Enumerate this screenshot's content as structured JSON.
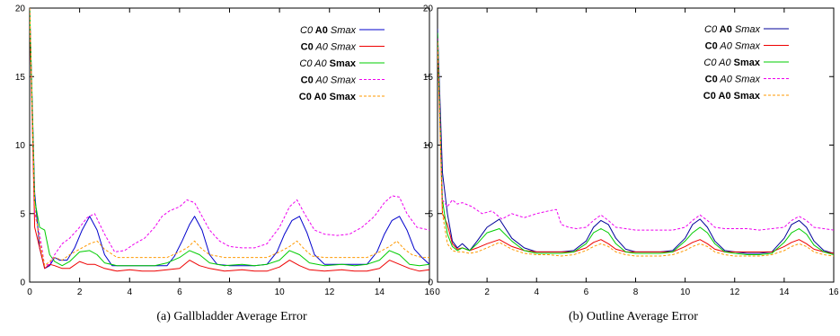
{
  "captions": {
    "left": "(a)  Gallbladder Average Error",
    "right": "(b)  Outline Average Error"
  },
  "legend_entries": [
    {
      "parts": [
        {
          "t": "C",
          "s": "i"
        },
        {
          "t": "0",
          "s": "i"
        },
        {
          "t": " A",
          "s": "b"
        },
        {
          "t": "0",
          "s": "b"
        },
        {
          "t": " S",
          "s": "i"
        },
        {
          "t": "max",
          "s": "i"
        }
      ]
    },
    {
      "parts": [
        {
          "t": "C",
          "s": "b"
        },
        {
          "t": "0",
          "s": "b"
        },
        {
          "t": " A",
          "s": "i"
        },
        {
          "t": "0",
          "s": "i"
        },
        {
          "t": " S",
          "s": "i"
        },
        {
          "t": "max",
          "s": "i"
        }
      ]
    },
    {
      "parts": [
        {
          "t": "C",
          "s": "i"
        },
        {
          "t": "0",
          "s": "i"
        },
        {
          "t": " A",
          "s": "i"
        },
        {
          "t": "0",
          "s": "i"
        },
        {
          "t": " S",
          "s": "b"
        },
        {
          "t": "max",
          "s": "b"
        }
      ]
    },
    {
      "parts": [
        {
          "t": "C",
          "s": "b"
        },
        {
          "t": "0",
          "s": "b"
        },
        {
          "t": " A",
          "s": "i"
        },
        {
          "t": "0",
          "s": "i"
        },
        {
          "t": " S",
          "s": "i"
        },
        {
          "t": "max",
          "s": "i"
        }
      ]
    },
    {
      "parts": [
        {
          "t": "C",
          "s": "b"
        },
        {
          "t": "0",
          "s": "b"
        },
        {
          "t": " A",
          "s": "b"
        },
        {
          "t": "0",
          "s": "b"
        },
        {
          "t": " S",
          "s": "b"
        },
        {
          "t": "max",
          "s": "b"
        }
      ]
    }
  ],
  "chart_data": [
    {
      "type": "line",
      "title": "",
      "xlim": [
        0,
        16
      ],
      "ylim": [
        0,
        20
      ],
      "x_ticks": [
        0,
        2,
        4,
        6,
        8,
        10,
        12,
        14,
        16
      ],
      "y_ticks": [
        0,
        5,
        10,
        15,
        20
      ],
      "grid": false,
      "legend_position": "top-right",
      "series": [
        {
          "color": "#0000cc",
          "dash": "solid",
          "x": [
            0,
            0.2,
            0.4,
            0.6,
            0.8,
            1.0,
            1.2,
            1.5,
            1.8,
            2.1,
            2.4,
            2.7,
            3.0,
            3.3,
            3.6,
            4.0,
            4.5,
            5.0,
            5.5,
            5.8,
            6.1,
            6.4,
            6.6,
            6.9,
            7.2,
            7.5,
            8.0,
            8.5,
            9.0,
            9.5,
            9.9,
            10.2,
            10.5,
            10.8,
            11.1,
            11.4,
            11.8,
            12.5,
            13.0,
            13.5,
            13.9,
            14.2,
            14.5,
            14.8,
            15.1,
            15.4,
            15.7,
            16.0
          ],
          "y": [
            20,
            6.5,
            2.5,
            1.0,
            1.2,
            1.8,
            1.6,
            1.6,
            2.5,
            3.8,
            4.8,
            3.8,
            2.0,
            1.2,
            1.2,
            1.2,
            1.2,
            1.2,
            1.2,
            1.9,
            3.0,
            4.2,
            4.8,
            3.8,
            2.0,
            1.3,
            1.2,
            1.2,
            1.2,
            1.3,
            2.2,
            3.5,
            4.5,
            4.8,
            3.6,
            2.0,
            1.3,
            1.3,
            1.3,
            1.3,
            2.2,
            3.5,
            4.5,
            4.8,
            3.8,
            2.4,
            1.8,
            1.3
          ]
        },
        {
          "color": "#ee0000",
          "dash": "solid",
          "x": [
            0,
            0.2,
            0.4,
            0.6,
            0.8,
            1.0,
            1.3,
            1.6,
            2.0,
            2.3,
            2.6,
            3.0,
            3.5,
            4.0,
            4.5,
            5.0,
            5.5,
            6.0,
            6.4,
            6.8,
            7.2,
            7.8,
            8.5,
            9.0,
            9.5,
            10.0,
            10.4,
            10.8,
            11.2,
            11.8,
            12.5,
            13.0,
            13.5,
            14.0,
            14.4,
            14.8,
            15.2,
            15.6,
            16.0
          ],
          "y": [
            20,
            4.0,
            2.5,
            1.0,
            1.3,
            1.2,
            1.0,
            1.0,
            1.5,
            1.3,
            1.3,
            1.0,
            0.8,
            0.9,
            0.8,
            0.8,
            0.9,
            1.0,
            1.6,
            1.2,
            1.0,
            0.8,
            0.9,
            0.8,
            0.8,
            1.1,
            1.6,
            1.2,
            0.9,
            0.8,
            0.9,
            0.8,
            0.8,
            1.0,
            1.6,
            1.3,
            1.0,
            0.8,
            0.9
          ]
        },
        {
          "color": "#00cc00",
          "dash": "solid",
          "x": [
            0,
            0.2,
            0.4,
            0.6,
            0.8,
            1.0,
            1.3,
            1.6,
            2.0,
            2.4,
            2.7,
            3.0,
            3.5,
            4.0,
            4.5,
            5.0,
            5.5,
            6.0,
            6.4,
            6.8,
            7.2,
            7.8,
            8.5,
            9.0,
            9.5,
            10.0,
            10.4,
            10.8,
            11.2,
            11.8,
            12.5,
            13.0,
            13.5,
            14.0,
            14.4,
            14.8,
            15.2,
            15.6,
            16.0
          ],
          "y": [
            20,
            6.0,
            4.0,
            3.8,
            2.0,
            1.5,
            1.2,
            1.5,
            2.2,
            2.3,
            2.0,
            1.4,
            1.2,
            1.2,
            1.2,
            1.2,
            1.4,
            1.8,
            2.3,
            2.0,
            1.4,
            1.2,
            1.3,
            1.2,
            1.3,
            1.6,
            2.3,
            2.0,
            1.4,
            1.2,
            1.3,
            1.2,
            1.3,
            1.6,
            2.3,
            2.0,
            1.3,
            1.2,
            1.3
          ]
        },
        {
          "color": "#ee00ee",
          "dash": "dash",
          "x": [
            0,
            0.2,
            0.4,
            0.6,
            0.8,
            1.0,
            1.3,
            1.6,
            2.0,
            2.3,
            2.6,
            3.0,
            3.4,
            3.8,
            4.2,
            4.6,
            5.0,
            5.3,
            5.6,
            6.0,
            6.3,
            6.6,
            6.9,
            7.2,
            7.6,
            8.0,
            8.5,
            9.0,
            9.5,
            10.0,
            10.4,
            10.7,
            11.0,
            11.4,
            11.8,
            12.3,
            12.8,
            13.3,
            13.8,
            14.2,
            14.5,
            14.8,
            15.1,
            15.5,
            16.0
          ],
          "y": [
            20,
            5.0,
            3.5,
            1.2,
            1.3,
            2.0,
            2.8,
            3.2,
            4.0,
            4.7,
            5.0,
            3.5,
            2.2,
            2.3,
            2.8,
            3.2,
            4.0,
            4.8,
            5.2,
            5.5,
            6.0,
            5.8,
            4.8,
            3.8,
            3.0,
            2.6,
            2.5,
            2.5,
            2.8,
            4.0,
            5.5,
            6.0,
            5.0,
            3.8,
            3.5,
            3.4,
            3.5,
            4.0,
            4.8,
            5.8,
            6.3,
            6.2,
            5.0,
            4.0,
            3.8
          ]
        },
        {
          "color": "#ff9900",
          "dash": "dash",
          "x": [
            0,
            0.2,
            0.4,
            0.6,
            0.8,
            1.0,
            1.3,
            1.6,
            2.0,
            2.4,
            2.7,
            3.0,
            3.5,
            4.0,
            4.5,
            5.0,
            5.5,
            6.0,
            6.3,
            6.6,
            6.9,
            7.2,
            7.8,
            8.5,
            9.0,
            9.5,
            10.0,
            10.4,
            10.7,
            11.0,
            11.3,
            11.8,
            12.5,
            13.0,
            13.5,
            14.0,
            14.4,
            14.7,
            15.0,
            15.3,
            15.7,
            16.0
          ],
          "y": [
            20,
            5.5,
            3.0,
            1.2,
            1.5,
            1.8,
            1.6,
            2.0,
            2.4,
            2.8,
            3.0,
            2.4,
            1.8,
            1.8,
            1.8,
            1.8,
            1.8,
            2.2,
            2.5,
            3.0,
            2.4,
            2.0,
            1.8,
            1.8,
            1.8,
            1.8,
            2.2,
            2.6,
            3.0,
            2.4,
            1.9,
            1.8,
            1.8,
            1.8,
            1.8,
            2.2,
            2.6,
            3.0,
            2.4,
            2.0,
            1.8,
            1.8
          ]
        }
      ]
    },
    {
      "type": "line",
      "title": "",
      "xlim": [
        0,
        16
      ],
      "ylim": [
        0,
        20
      ],
      "x_ticks": [
        0,
        2,
        4,
        6,
        8,
        10,
        12,
        14,
        16
      ],
      "y_ticks": [
        0,
        5,
        10,
        15,
        20
      ],
      "grid": false,
      "legend_position": "top-right",
      "series": [
        {
          "color": "#000099",
          "dash": "solid",
          "x": [
            0,
            0.2,
            0.4,
            0.6,
            0.8,
            1.0,
            1.3,
            1.6,
            2.0,
            2.5,
            3.0,
            3.5,
            4.0,
            4.5,
            5.0,
            5.5,
            6.0,
            6.3,
            6.6,
            6.9,
            7.2,
            7.6,
            8.0,
            8.5,
            9.0,
            9.5,
            10.0,
            10.3,
            10.6,
            10.9,
            11.2,
            11.6,
            12.0,
            12.5,
            13.0,
            13.5,
            14.0,
            14.3,
            14.6,
            14.9,
            15.2,
            15.6,
            16.0
          ],
          "y": [
            18.5,
            8.0,
            5.0,
            3.0,
            2.5,
            2.8,
            2.3,
            3.0,
            4.0,
            4.6,
            3.2,
            2.5,
            2.2,
            2.2,
            2.2,
            2.3,
            3.0,
            4.0,
            4.5,
            4.2,
            3.2,
            2.4,
            2.2,
            2.2,
            2.2,
            2.3,
            3.2,
            4.2,
            4.6,
            4.0,
            3.0,
            2.3,
            2.2,
            2.1,
            2.1,
            2.2,
            3.2,
            4.2,
            4.5,
            4.0,
            3.0,
            2.3,
            2.1
          ]
        },
        {
          "color": "#ee0000",
          "dash": "solid",
          "x": [
            0,
            0.2,
            0.4,
            0.6,
            0.8,
            1.0,
            1.3,
            1.6,
            2.0,
            2.5,
            3.0,
            3.5,
            4.0,
            4.5,
            5.0,
            5.5,
            6.0,
            6.3,
            6.6,
            6.9,
            7.2,
            7.6,
            8.0,
            8.5,
            9.0,
            9.5,
            10.0,
            10.3,
            10.6,
            10.9,
            11.2,
            11.6,
            12.0,
            12.5,
            13.0,
            13.5,
            14.0,
            14.3,
            14.6,
            14.9,
            15.2,
            15.6,
            16.0
          ],
          "y": [
            18.0,
            5.0,
            4.2,
            2.8,
            2.4,
            2.5,
            2.3,
            2.5,
            2.8,
            3.1,
            2.6,
            2.3,
            2.2,
            2.2,
            2.2,
            2.2,
            2.5,
            2.9,
            3.1,
            2.8,
            2.4,
            2.2,
            2.2,
            2.2,
            2.2,
            2.2,
            2.6,
            2.9,
            3.1,
            2.8,
            2.4,
            2.2,
            2.2,
            2.2,
            2.2,
            2.2,
            2.6,
            2.9,
            3.1,
            2.8,
            2.4,
            2.2,
            2.1
          ]
        },
        {
          "color": "#00cc00",
          "dash": "solid",
          "x": [
            0,
            0.2,
            0.4,
            0.6,
            0.8,
            1.0,
            1.3,
            1.6,
            2.0,
            2.5,
            3.0,
            3.5,
            4.0,
            4.5,
            5.0,
            5.5,
            6.0,
            6.3,
            6.6,
            6.9,
            7.2,
            7.6,
            8.0,
            8.5,
            9.0,
            9.5,
            10.0,
            10.3,
            10.6,
            10.9,
            11.2,
            11.6,
            12.0,
            12.5,
            13.0,
            13.5,
            14.0,
            14.3,
            14.6,
            14.9,
            15.2,
            15.6,
            16.0
          ],
          "y": [
            18.2,
            6.0,
            3.5,
            2.6,
            2.3,
            2.5,
            2.3,
            2.8,
            3.6,
            3.9,
            3.0,
            2.3,
            2.1,
            2.1,
            2.1,
            2.2,
            2.8,
            3.6,
            3.9,
            3.6,
            2.8,
            2.2,
            2.1,
            2.1,
            2.1,
            2.2,
            3.0,
            3.6,
            4.0,
            3.6,
            2.8,
            2.2,
            2.1,
            2.0,
            2.0,
            2.1,
            2.9,
            3.6,
            3.9,
            3.5,
            2.7,
            2.2,
            2.0
          ]
        },
        {
          "color": "#ee00ee",
          "dash": "dash",
          "x": [
            0,
            0.2,
            0.4,
            0.6,
            0.8,
            1.0,
            1.4,
            1.8,
            2.2,
            2.6,
            3.0,
            3.5,
            4.0,
            4.5,
            4.8,
            5.0,
            5.3,
            5.6,
            6.0,
            6.3,
            6.6,
            6.9,
            7.2,
            7.6,
            8.0,
            8.5,
            9.0,
            9.5,
            10.0,
            10.3,
            10.6,
            10.9,
            11.2,
            11.6,
            12.0,
            12.5,
            13.0,
            13.5,
            14.0,
            14.3,
            14.6,
            14.9,
            15.2,
            15.6,
            16.0
          ],
          "y": [
            17.8,
            6.0,
            5.5,
            6.0,
            5.7,
            5.8,
            5.5,
            5.0,
            5.2,
            4.6,
            5.0,
            4.7,
            5.0,
            5.2,
            5.3,
            4.2,
            4.0,
            3.9,
            4.0,
            4.5,
            4.9,
            4.5,
            4.0,
            3.9,
            3.8,
            3.8,
            3.8,
            3.8,
            4.0,
            4.5,
            4.9,
            4.5,
            4.0,
            3.9,
            3.9,
            3.9,
            3.8,
            3.9,
            4.0,
            4.5,
            4.8,
            4.5,
            4.0,
            3.9,
            3.8
          ]
        },
        {
          "color": "#ff9900",
          "dash": "dash",
          "x": [
            0,
            0.2,
            0.4,
            0.6,
            0.8,
            1.0,
            1.3,
            1.6,
            2.0,
            2.5,
            3.0,
            3.5,
            4.0,
            4.5,
            5.0,
            5.5,
            6.0,
            6.3,
            6.6,
            6.9,
            7.2,
            7.6,
            8.0,
            8.5,
            9.0,
            9.5,
            10.0,
            10.3,
            10.6,
            10.9,
            11.2,
            11.6,
            12.0,
            12.5,
            13.0,
            13.5,
            14.0,
            14.3,
            14.6,
            14.9,
            15.2,
            15.6,
            16.0
          ],
          "y": [
            17.5,
            5.0,
            2.8,
            2.3,
            2.2,
            2.2,
            2.1,
            2.2,
            2.5,
            2.9,
            2.4,
            2.1,
            2.0,
            2.0,
            1.9,
            2.0,
            2.3,
            2.6,
            2.8,
            2.6,
            2.2,
            2.0,
            1.9,
            1.9,
            1.9,
            2.0,
            2.3,
            2.6,
            2.8,
            2.6,
            2.2,
            2.0,
            1.9,
            1.9,
            1.9,
            2.0,
            2.3,
            2.6,
            2.8,
            2.6,
            2.2,
            2.0,
            1.9
          ]
        }
      ]
    }
  ]
}
